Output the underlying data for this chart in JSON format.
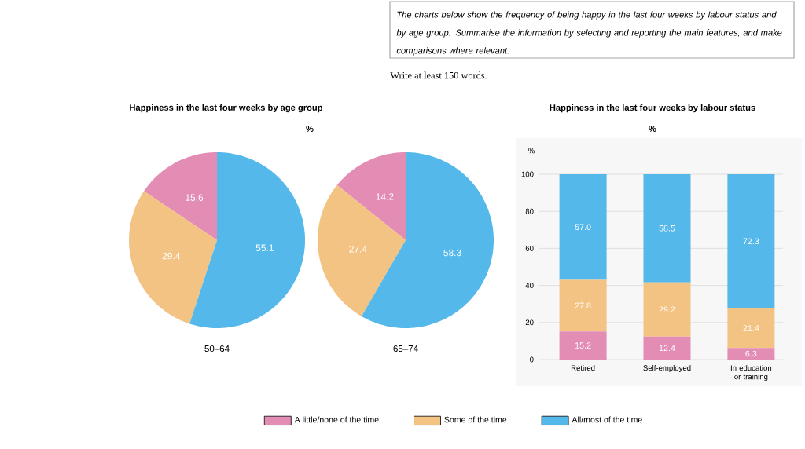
{
  "chart_data": [
    {
      "type": "other",
      "annotations": [
        "The charts below show the frequency of being happy in the last four weeks by labour status and by age group. Summarise the information by selecting and reporting the main features, and make comparisons where relevant.",
        "Write at least 150 words."
      ]
    },
    {
      "type": "pie",
      "title": "Happiness in the last four weeks by age group",
      "subtitle": "%",
      "xlabel": "50–64",
      "categories": [
        null,
        null,
        null
      ],
      "values": [
        15.6,
        29.4,
        55.1
      ],
      "colors": [
        "#e38db5",
        "#f3c383",
        "#55b8ea"
      ],
      "data_labels": true
    },
    {
      "type": "pie",
      "xlabel": "65–74",
      "categories": [
        null,
        null,
        null
      ],
      "values": [
        14.2,
        27.4,
        58.3
      ],
      "colors": [
        "#e38db5",
        "#f3c383",
        "#55b8ea"
      ],
      "data_labels": true
    },
    {
      "type": "bar",
      "title": "Happiness in the last four weeks by labour status",
      "subtitle": "%",
      "ylabel": "%",
      "categories": [
        "Retired",
        "Self-employed",
        "In education or training"
      ],
      "stacked": true,
      "series": [
        {
          "name": "A little/none of the time",
          "color": "#e38db5",
          "values": [
            15.2,
            12.4,
            6.3
          ],
          "value_labels": [
            "15.2",
            "12.4",
            "6.3"
          ]
        },
        {
          "name": "Some of the time",
          "color": "#f3c383",
          "values": [
            27.8,
            29.2,
            21.4
          ],
          "value_labels": [
            "27.8",
            "29.2",
            "21.4"
          ]
        },
        {
          "name": "All/most of the time",
          "color": "#55b8ea",
          "values": [
            57.0,
            58.5,
            72.3
          ],
          "value_labels": [
            "57.0",
            "58.5",
            "72.3"
          ]
        }
      ],
      "ylim": [
        0,
        100
      ],
      "yticks": [
        0,
        20,
        40,
        60,
        80,
        100
      ],
      "grid": "y",
      "legend": "bottom"
    }
  ]
}
